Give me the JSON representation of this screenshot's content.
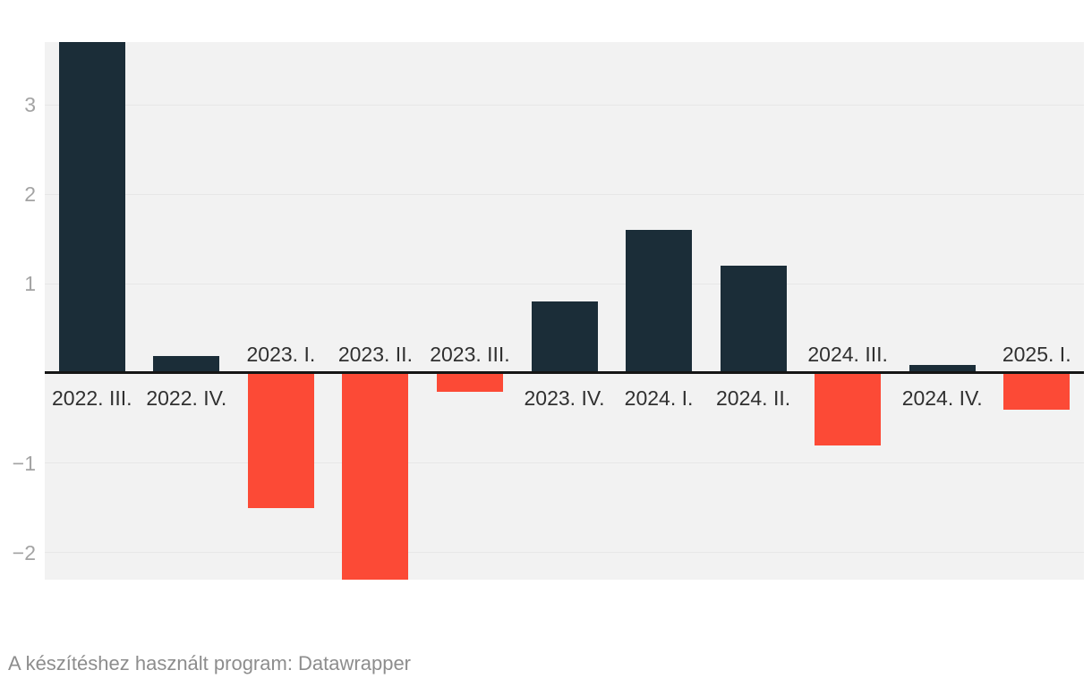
{
  "chart_data": {
    "type": "bar",
    "categories": [
      "2022. III.",
      "2022. IV.",
      "2023. I.",
      "2023. II.",
      "2023. III.",
      "2023. IV.",
      "2024. I.",
      "2024. II.",
      "2024. III.",
      "2024. IV.",
      "2025. I."
    ],
    "values": [
      3.7,
      0.2,
      -1.5,
      -2.3,
      -0.2,
      0.8,
      1.6,
      1.2,
      -0.8,
      0.1,
      -0.4
    ],
    "title": "",
    "xlabel": "",
    "ylabel": "",
    "ylim": [
      -2.3,
      3.7
    ],
    "yticks": [
      3,
      2,
      1,
      -1,
      -2
    ],
    "grid": true,
    "legend": "none",
    "colors": {
      "positive_bar": "#1b2d38",
      "negative_bar": "#fc4a36",
      "plot_background": "#f2f2f2",
      "page_background": "#ffffff",
      "gridline": "#e7e7e7",
      "zero_line": "#151515",
      "tick_label": "#a3a3a3",
      "category_label": "#303030"
    }
  },
  "footer": {
    "credit": "A készítéshez használt program: Datawrapper",
    "credit_color": "#8d8d8d"
  }
}
